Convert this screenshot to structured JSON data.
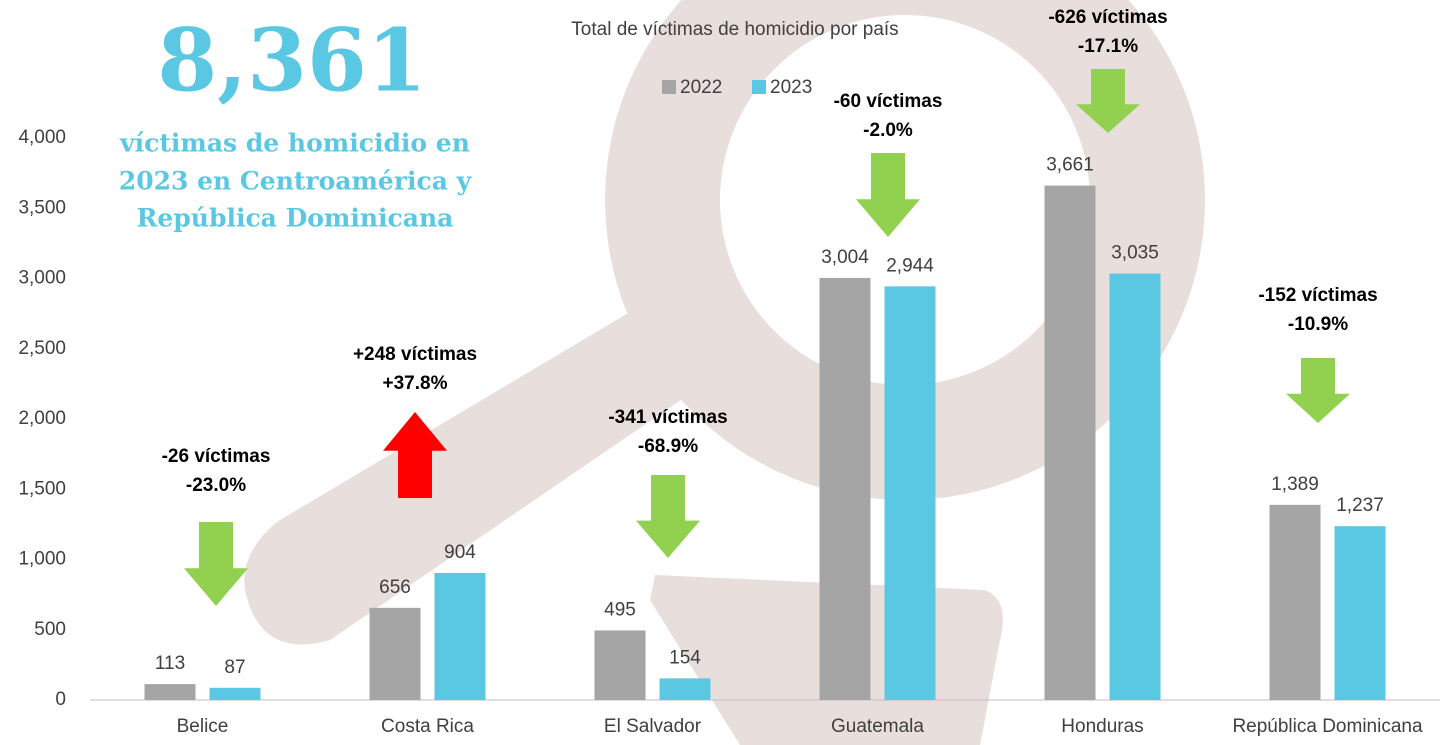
{
  "chart_data": {
    "type": "bar",
    "title": "Total de víctimas de homicidio por país",
    "headline": "8,361",
    "headline_text": [
      "víctimas de homicidio en",
      "2023 en Centroamérica y",
      "República Dominicana"
    ],
    "categories": [
      "Belice",
      "Costa Rica",
      "El Salvador",
      "Guatemala",
      "Honduras",
      "República Dominicana"
    ],
    "series": [
      {
        "name": "2022",
        "color": "#a5a5a5",
        "values": [
          113,
          656,
          495,
          3004,
          3661,
          1389
        ],
        "value_labels": [
          "113",
          "656",
          "495",
          "3,004",
          "3,661",
          "1,389"
        ]
      },
      {
        "name": "2023",
        "color": "#5bc8e3",
        "values": [
          87,
          904,
          154,
          2944,
          3035,
          1237
        ],
        "value_labels": [
          "87",
          "904",
          "154",
          "2,944",
          "3,035",
          "1,237"
        ]
      }
    ],
    "ylim": [
      0,
      4000
    ],
    "yticks": [
      0,
      500,
      {
        "value": 1000,
        "label": "1,000"
      },
      {
        "value": 1500,
        "label": "1,500"
      },
      {
        "value": 2000,
        "label": "2,000"
      },
      {
        "value": 2500,
        "label": "2,500"
      },
      {
        "value": 3000,
        "label": "3,000"
      },
      {
        "value": 3500,
        "label": "3,500"
      },
      {
        "value": 4000,
        "label": "4,000"
      }
    ],
    "grid": false,
    "legend": "top",
    "annotations": [
      {
        "lines": [
          "-26 víctimas",
          "-23.0%"
        ],
        "direction": "down",
        "color": "#92d050"
      },
      {
        "lines": [
          "+248 víctimas",
          "+37.8%"
        ],
        "direction": "up",
        "color": "#ff0000"
      },
      {
        "lines": [
          "-341 víctimas",
          "-68.9%"
        ],
        "direction": "down",
        "color": "#92d050"
      },
      {
        "lines": [
          "-60 víctimas",
          "-2.0%"
        ],
        "direction": "down",
        "color": "#92d050"
      },
      {
        "lines": [
          "-626 víctimas",
          "-17.1%"
        ],
        "direction": "down",
        "color": "#92d050"
      },
      {
        "lines": [
          "-152 víctimas",
          "-10.9%"
        ],
        "direction": "down",
        "color": "#92d050"
      }
    ]
  }
}
